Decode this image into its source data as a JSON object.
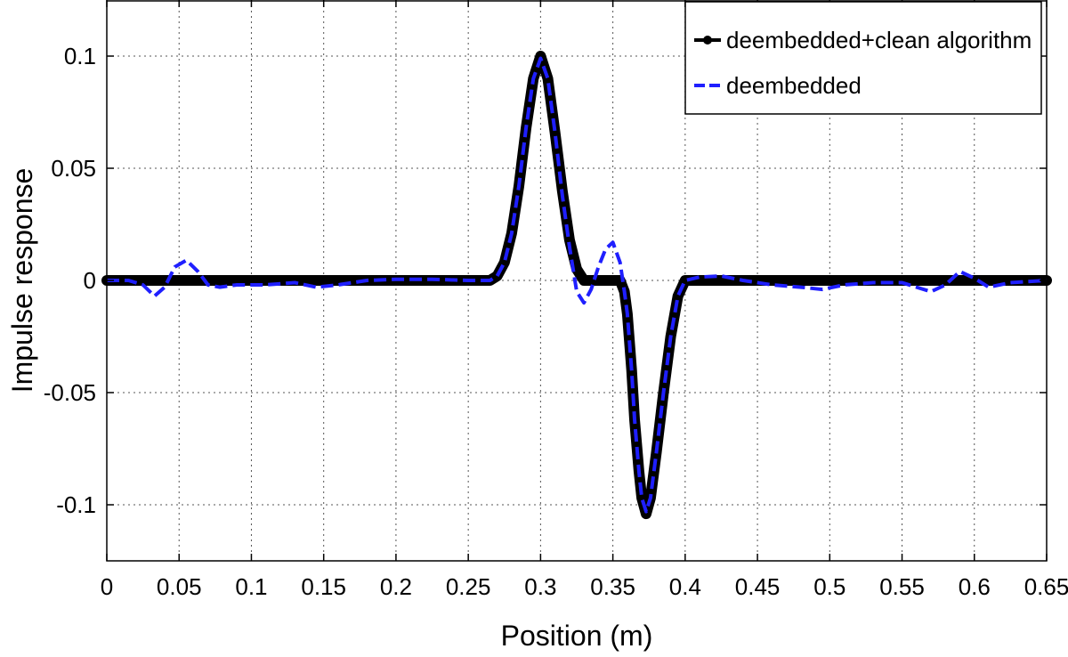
{
  "chart_data": {
    "type": "line",
    "title": "",
    "xlabel": "Position (m)",
    "ylabel": "Impulse response",
    "xlim": [
      0,
      0.65
    ],
    "ylim": [
      -0.125,
      0.125
    ],
    "xticks": [
      0,
      0.05,
      0.1,
      0.15,
      0.2,
      0.25,
      0.3,
      0.35,
      0.4,
      0.45,
      0.5,
      0.55,
      0.6,
      0.65
    ],
    "xtick_labels": [
      "0",
      "0.05",
      "0.1",
      "0.15",
      "0.2",
      "0.25",
      "0.3",
      "0.35",
      "0.4",
      "0.45",
      "0.5",
      "0.55",
      "0.6",
      "0.65"
    ],
    "yticks": [
      -0.1,
      -0.05,
      0,
      0.05,
      0.1
    ],
    "ytick_labels": [
      "-0.1",
      "-0.05",
      "0",
      "0.05",
      "0.1"
    ],
    "grid": true,
    "legend_position": "top-right",
    "series": [
      {
        "name": "deembedded+clean algorithm",
        "color": "#000000",
        "style": "solid-dots",
        "x": [
          0,
          0.05,
          0.1,
          0.15,
          0.2,
          0.25,
          0.265,
          0.27,
          0.275,
          0.28,
          0.285,
          0.29,
          0.295,
          0.3,
          0.305,
          0.31,
          0.315,
          0.32,
          0.325,
          0.33,
          0.335,
          0.34,
          0.345,
          0.35,
          0.355,
          0.358,
          0.36,
          0.363,
          0.365,
          0.368,
          0.37,
          0.373,
          0.376,
          0.38,
          0.385,
          0.39,
          0.395,
          0.4,
          0.45,
          0.5,
          0.55,
          0.6,
          0.65
        ],
        "y": [
          0,
          0,
          0,
          0,
          0,
          0,
          0,
          0.002,
          0.008,
          0.021,
          0.042,
          0.068,
          0.09,
          0.1,
          0.09,
          0.066,
          0.04,
          0.018,
          0.005,
          0.0,
          0.0,
          0.0,
          0.0,
          0.0,
          0.0,
          -0.005,
          -0.015,
          -0.04,
          -0.062,
          -0.085,
          -0.097,
          -0.104,
          -0.097,
          -0.077,
          -0.05,
          -0.025,
          -0.007,
          0,
          0,
          0,
          0,
          0,
          0
        ]
      },
      {
        "name": "deembedded",
        "color": "#1f1fff",
        "style": "dashed",
        "x": [
          0,
          0.015,
          0.025,
          0.033,
          0.04,
          0.047,
          0.055,
          0.063,
          0.07,
          0.078,
          0.09,
          0.11,
          0.13,
          0.145,
          0.16,
          0.18,
          0.2,
          0.225,
          0.25,
          0.265,
          0.27,
          0.275,
          0.28,
          0.285,
          0.29,
          0.295,
          0.3,
          0.305,
          0.31,
          0.315,
          0.32,
          0.325,
          0.33,
          0.335,
          0.34,
          0.345,
          0.35,
          0.355,
          0.358,
          0.36,
          0.363,
          0.365,
          0.368,
          0.37,
          0.373,
          0.376,
          0.38,
          0.385,
          0.39,
          0.395,
          0.4,
          0.41,
          0.425,
          0.44,
          0.46,
          0.48,
          0.495,
          0.51,
          0.53,
          0.55,
          0.56,
          0.57,
          0.58,
          0.59,
          0.6,
          0.61,
          0.625,
          0.65
        ],
        "y": [
          0,
          0,
          -0.002,
          -0.007,
          -0.003,
          0.006,
          0.009,
          0.004,
          -0.002,
          -0.003,
          -0.002,
          -0.002,
          -0.001,
          -0.003,
          -0.002,
          0.0,
          0.0005,
          0.0005,
          0.0,
          0.0,
          0.002,
          0.008,
          0.021,
          0.042,
          0.068,
          0.09,
          0.099,
          0.09,
          0.066,
          0.038,
          0.015,
          -0.005,
          -0.01,
          -0.004,
          0.006,
          0.014,
          0.017,
          0.008,
          -0.005,
          -0.015,
          -0.04,
          -0.062,
          -0.085,
          -0.097,
          -0.103,
          -0.097,
          -0.077,
          -0.05,
          -0.025,
          -0.007,
          0.0,
          0.0015,
          0.002,
          0.0,
          -0.002,
          -0.003,
          -0.004,
          -0.002,
          -0.001,
          -0.001,
          -0.003,
          -0.005,
          -0.002,
          0.004,
          0.001,
          -0.003,
          -0.001,
          0
        ]
      }
    ]
  }
}
